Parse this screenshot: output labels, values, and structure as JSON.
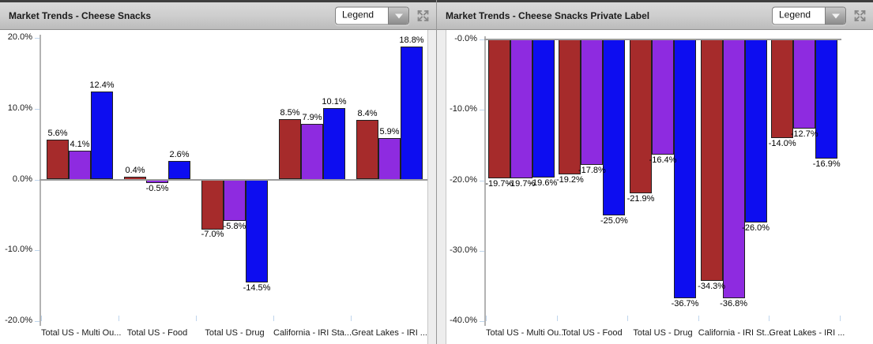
{
  "icons": {
    "legend_dropdown": "chevron-down-icon",
    "maximize": "expand-arrows-icon"
  },
  "panels": [
    {
      "title": "Market Trends - Cheese Snacks",
      "legend_label": "Legend"
    },
    {
      "title": "Market Trends - Cheese Snacks Private Label",
      "legend_label": "Legend"
    }
  ],
  "chart_data": [
    {
      "type": "bar",
      "title": "Market Trends - Cheese Snacks",
      "categories": [
        "Total US - Multi Ou...",
        "Total US - Food",
        "Total US - Drug",
        "California - IRI Sta...",
        "Great Lakes - IRI ..."
      ],
      "series": [
        {
          "color": "#A62B2B",
          "values": [
            5.6,
            0.4,
            -7.0,
            8.5,
            8.4
          ],
          "labels": [
            "5.6%",
            "0.4%",
            "-7.0%",
            "8.5%",
            "8.4%"
          ]
        },
        {
          "color": "#8E2BE0",
          "values": [
            4.1,
            -0.5,
            -5.8,
            7.9,
            5.9
          ],
          "labels": [
            "4.1%",
            "-0.5%",
            "-5.8%",
            "7.9%",
            "5.9%"
          ]
        },
        {
          "color": "#0D0DF0",
          "values": [
            12.4,
            2.6,
            -14.5,
            10.1,
            18.8
          ],
          "labels": [
            "12.4%",
            "2.6%",
            "-14.5%",
            "10.1%",
            "18.8%"
          ]
        }
      ],
      "y_ticks": [
        "20.0%",
        "10.0%",
        "0.0%",
        "-10.0%",
        "-20.0%"
      ],
      "y_tick_values": [
        20,
        10,
        0,
        -10,
        -20
      ],
      "ylim": [
        -20,
        20
      ],
      "baseline": 0,
      "grid": false,
      "legend_position": "collapsed-dropdown"
    },
    {
      "type": "bar",
      "title": "Market Trends - Cheese Snacks Private Label",
      "categories": [
        "Total US - Multi Ou...",
        "Total US - Food",
        "Total US - Drug",
        "California - IRI St...",
        "Great Lakes - IRI ..."
      ],
      "series": [
        {
          "color": "#A62B2B",
          "values": [
            -19.7,
            -19.2,
            -21.9,
            -34.3,
            -14.0
          ],
          "labels": [
            "-19.7%",
            "-19.2%",
            "-21.9%",
            "-34.3%",
            "-14.0%"
          ]
        },
        {
          "color": "#8E2BE0",
          "values": [
            -19.7,
            -17.8,
            -16.4,
            -36.8,
            -12.7
          ],
          "labels": [
            "-19.7%",
            "-17.8%",
            "-16.4%",
            "-36.8%",
            "-12.7%"
          ]
        },
        {
          "color": "#0D0DF0",
          "values": [
            -19.6,
            -25.0,
            -36.7,
            -26.0,
            -16.9
          ],
          "labels": [
            "-19.6%",
            "-25.0%",
            "-36.7%",
            "-26.0%",
            "-16.9%"
          ]
        }
      ],
      "y_ticks": [
        "-0.0%",
        "-10.0%",
        "-20.0%",
        "-30.0%",
        "-40.0%"
      ],
      "y_tick_values": [
        0,
        -10,
        -20,
        -30,
        -40
      ],
      "ylim": [
        -40,
        0
      ],
      "baseline": 0,
      "grid": false,
      "legend_position": "collapsed-dropdown"
    }
  ]
}
